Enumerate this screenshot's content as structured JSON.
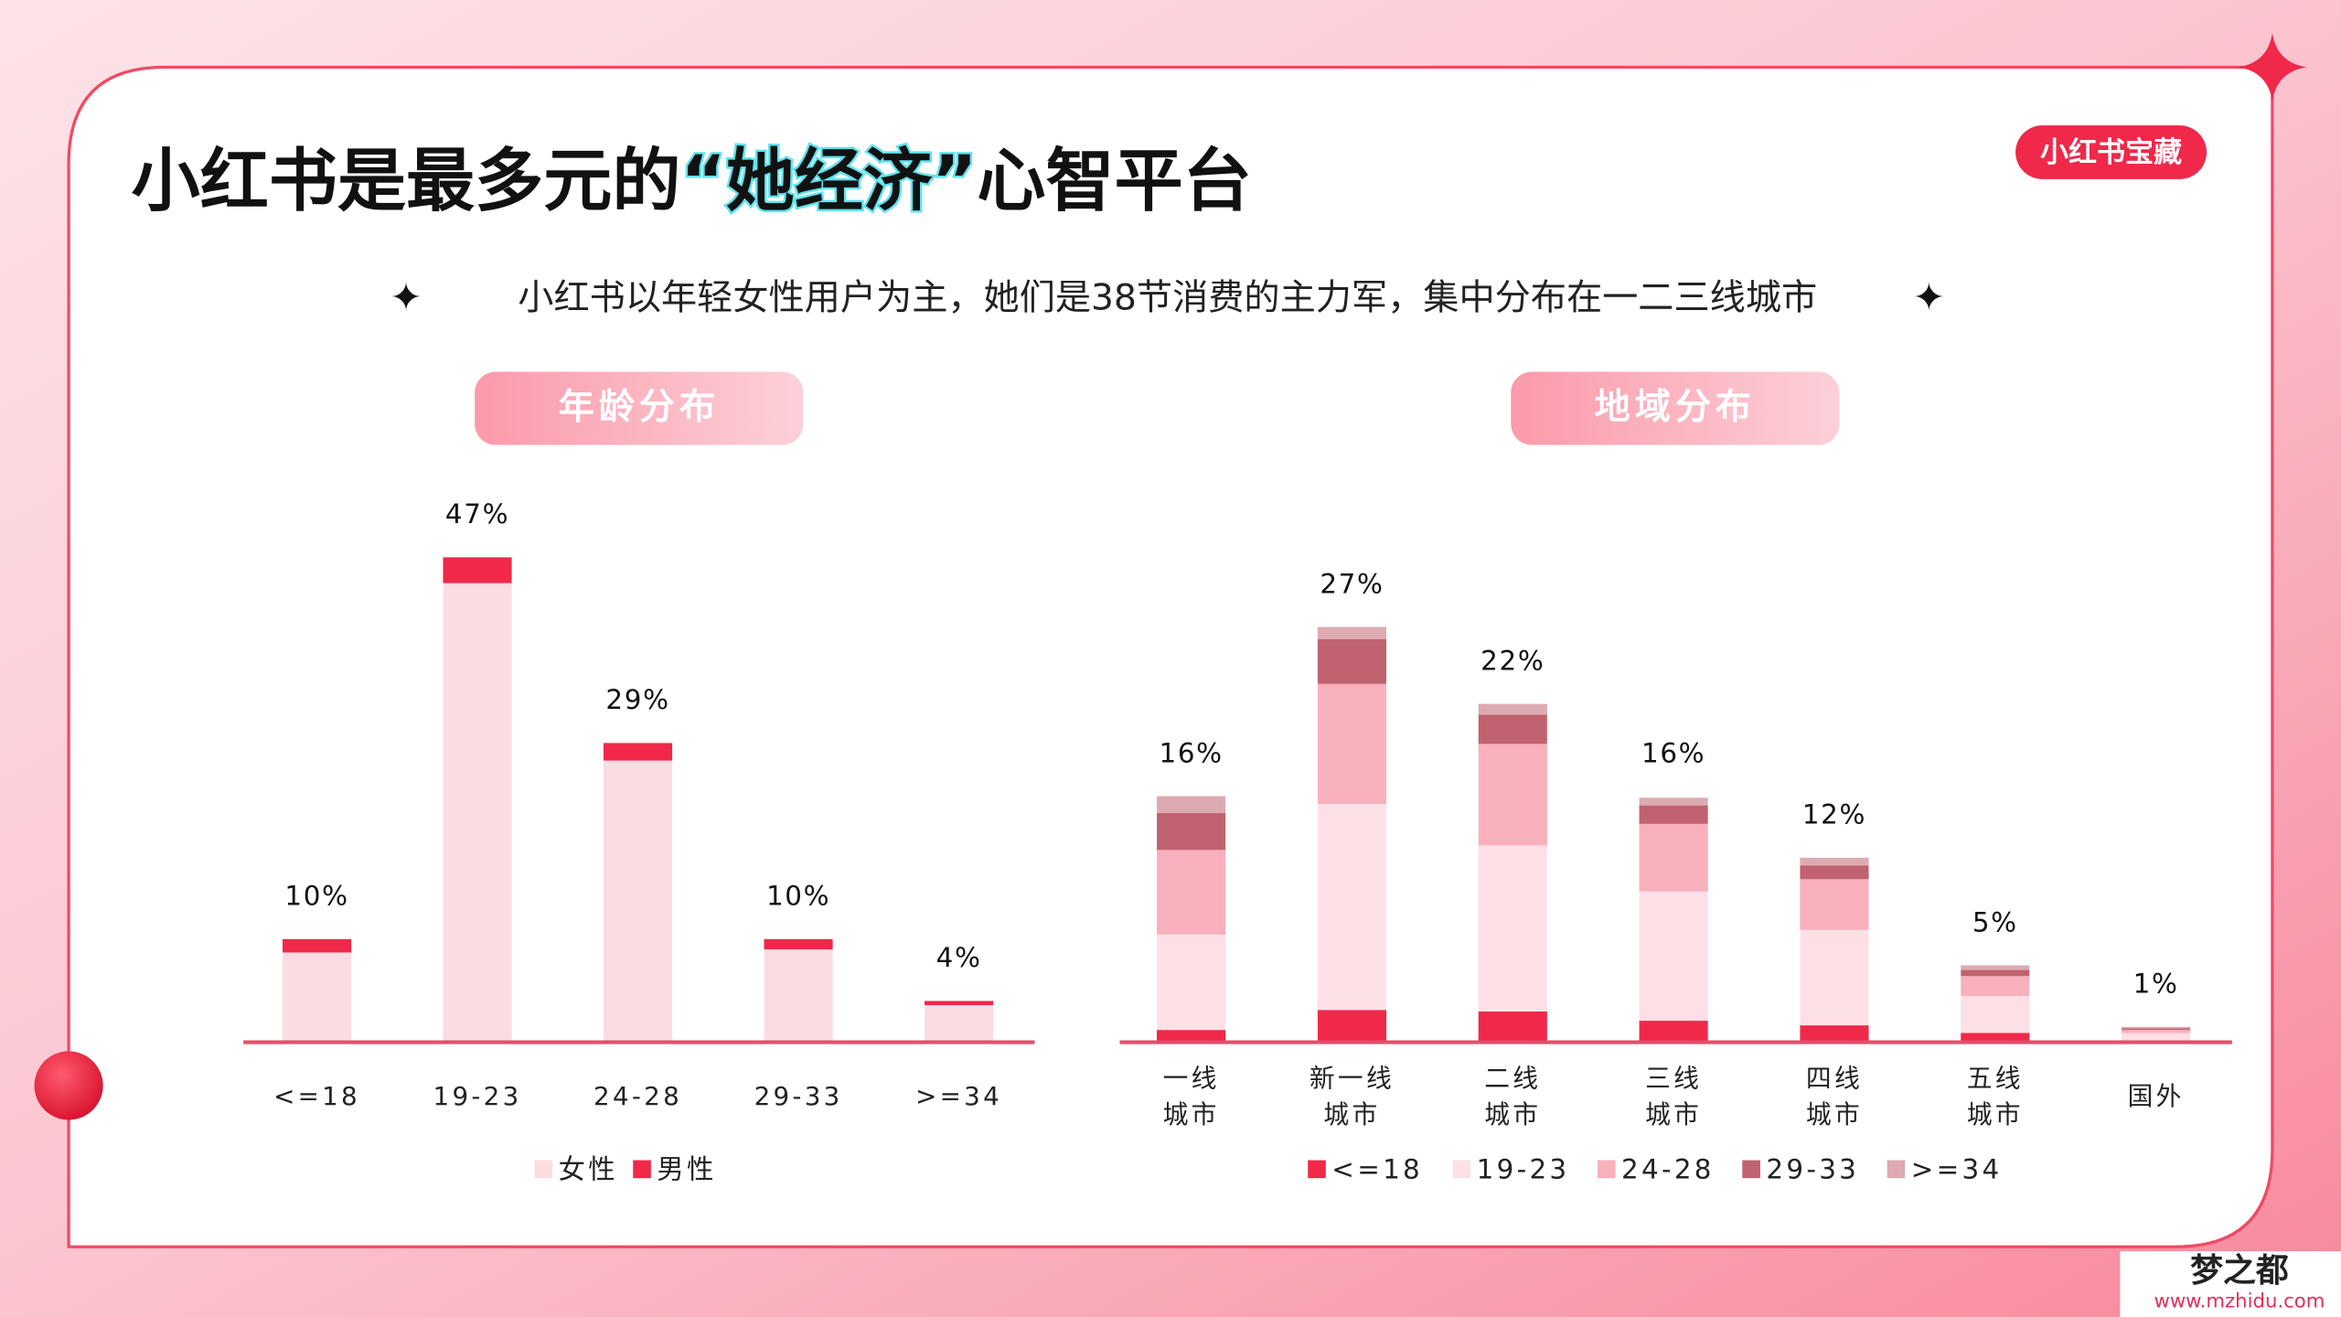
{
  "header": {
    "title_parts": [
      "小红书是最多元的",
      "“她经济”",
      "心智平台"
    ],
    "subtitle": "小红书以年轻女性用户为主，她们是38节消费的主力军，集中分布在一二三线城市",
    "badge": "小红书宝藏"
  },
  "chart_data": [
    {
      "type": "bar",
      "stacked": true,
      "title": "年龄分布",
      "categories": [
        "<=18",
        "19-23",
        "24-28",
        "29-33",
        ">=34"
      ],
      "series": [
        {
          "name": "女性",
          "color": "#fcdce3",
          "values": [
            8.7,
            44.5,
            27.3,
            9,
            3.6
          ]
        },
        {
          "name": "男性",
          "color": "#f0284a",
          "values": [
            1.3,
            2.5,
            1.7,
            1,
            0.4
          ]
        }
      ],
      "totals": [
        10,
        47,
        29,
        10,
        4
      ],
      "total_labels": [
        "10%",
        "47%",
        "29%",
        "10%",
        "4%"
      ],
      "ylim": [
        0,
        50
      ]
    },
    {
      "type": "bar",
      "stacked": true,
      "title": "地域分布",
      "categories": [
        "一线\n城市",
        "新一线\n城市",
        "二线\n城市",
        "三线\n城市",
        "四线\n城市",
        "五线\n城市",
        "国外"
      ],
      "series": [
        {
          "name": "<=18",
          "color": "#f0284a",
          "values": [
            0.8,
            2.1,
            2.0,
            1.4,
            1.1,
            0.6,
            0.1
          ]
        },
        {
          "name": "19-23",
          "color": "#fde0e6",
          "values": [
            6.2,
            13.4,
            10.8,
            8.4,
            6.2,
            2.4,
            0.5
          ]
        },
        {
          "name": "24-28",
          "color": "#f9b0bd",
          "values": [
            5.5,
            7.8,
            6.6,
            4.4,
            3.3,
            1.3,
            0.2
          ]
        },
        {
          "name": "29-33",
          "color": "#c0626f",
          "values": [
            2.4,
            2.9,
            1.9,
            1.2,
            0.9,
            0.4,
            0.1
          ]
        },
        {
          "name": ">=34",
          "color": "#ddaab2",
          "values": [
            1.1,
            0.8,
            0.7,
            0.5,
            0.5,
            0.3,
            0.1
          ]
        }
      ],
      "totals": [
        16,
        27,
        22,
        16,
        12,
        5,
        1
      ],
      "total_labels": [
        "16%",
        "27%",
        "22%",
        "16%",
        "12%",
        "5%",
        "1%"
      ],
      "ylim": [
        0,
        30
      ]
    }
  ],
  "watermark": {
    "name": "梦之都",
    "url": "www.mzhidu.com"
  }
}
